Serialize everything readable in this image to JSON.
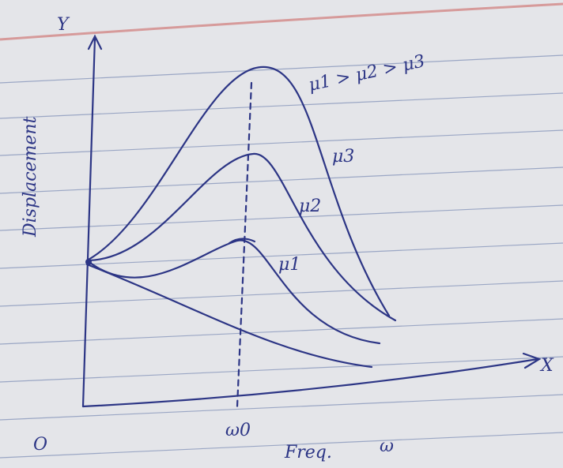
{
  "axes": {
    "y_label": "Y",
    "x_label": "X",
    "origin": "O",
    "y_title": "Displacement",
    "x_title": "Freq.",
    "x_symbol": "ω",
    "resonance": "ω0"
  },
  "curves": [
    {
      "label": "μ3"
    },
    {
      "label": "μ2"
    },
    {
      "label": "μ1"
    }
  ],
  "legend": "μ1 > μ2 > μ3"
}
